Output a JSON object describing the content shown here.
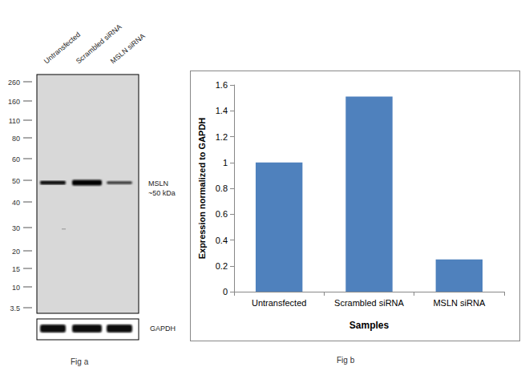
{
  "chart_data": {
    "type": "bar",
    "categories": [
      "Untransfected",
      "Scrambled siRNA",
      "MSLN siRNA"
    ],
    "values": [
      1,
      1.51,
      0.25
    ],
    "color": "#4f81bd",
    "ylim": [
      0,
      1.6
    ],
    "yticks": [
      0,
      0.2,
      0.4,
      0.6,
      0.8,
      1,
      1.2,
      1.4,
      1.6
    ],
    "xlabel": "Samples",
    "ylabel": "Expression normalized to GAPDH",
    "grid": false,
    "caption": "Fig b"
  },
  "blot": {
    "lanes": [
      "Untransfected",
      "Scrambled siRNA",
      "MSLN siRNA"
    ],
    "markers": [
      260,
      160,
      110,
      80,
      60,
      50,
      40,
      30,
      20,
      15,
      10,
      3.5
    ],
    "band_label": [
      "MSLN",
      "~50 kDa"
    ],
    "loading_control": "GAPDH",
    "caption": "Fig a"
  }
}
